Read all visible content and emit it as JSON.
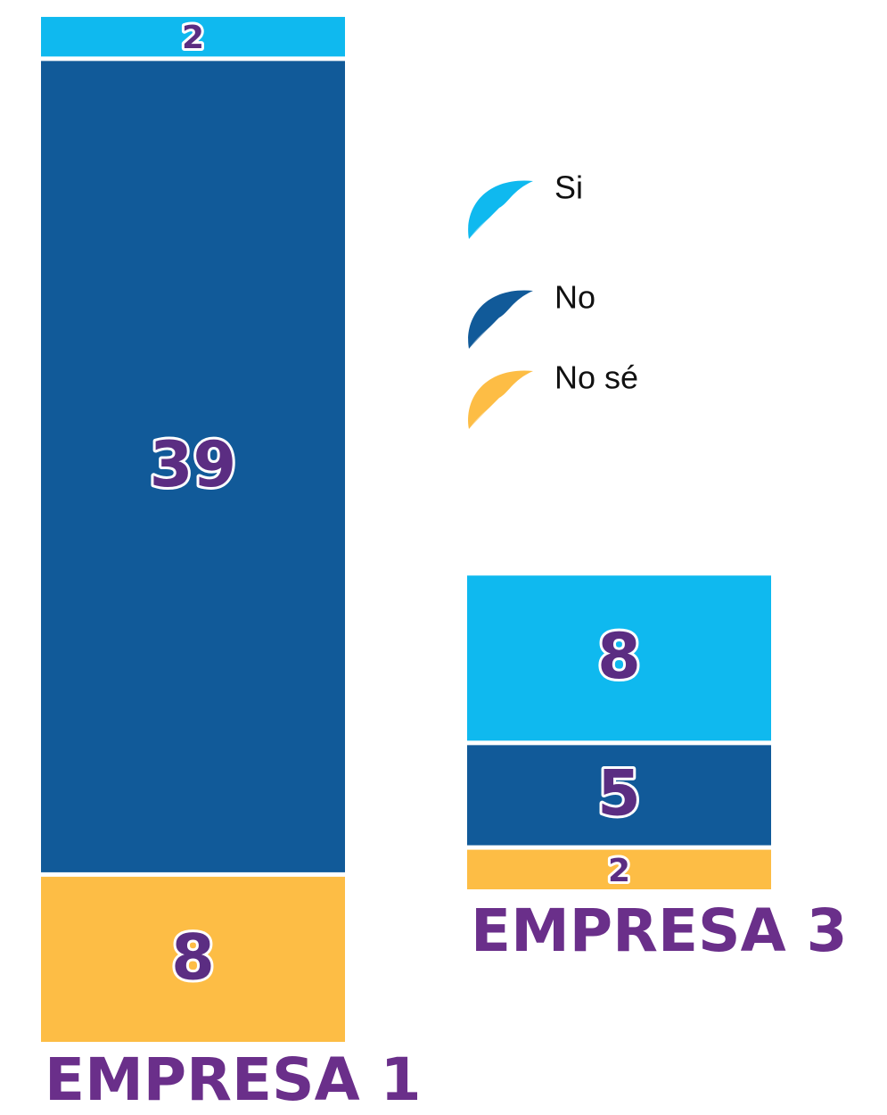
{
  "chart_data": {
    "type": "bar",
    "stacked": true,
    "categories": [
      "EMPRESA 1",
      "EMPRESA 3"
    ],
    "series": [
      {
        "name": "Si",
        "color": "#0fb9ef",
        "values": [
          2,
          8
        ]
      },
      {
        "name": "No",
        "color": "#115a99",
        "values": [
          39,
          5
        ]
      },
      {
        "name": "No sé",
        "color": "#fdbd45",
        "values": [
          8,
          2
        ]
      }
    ]
  }
}
